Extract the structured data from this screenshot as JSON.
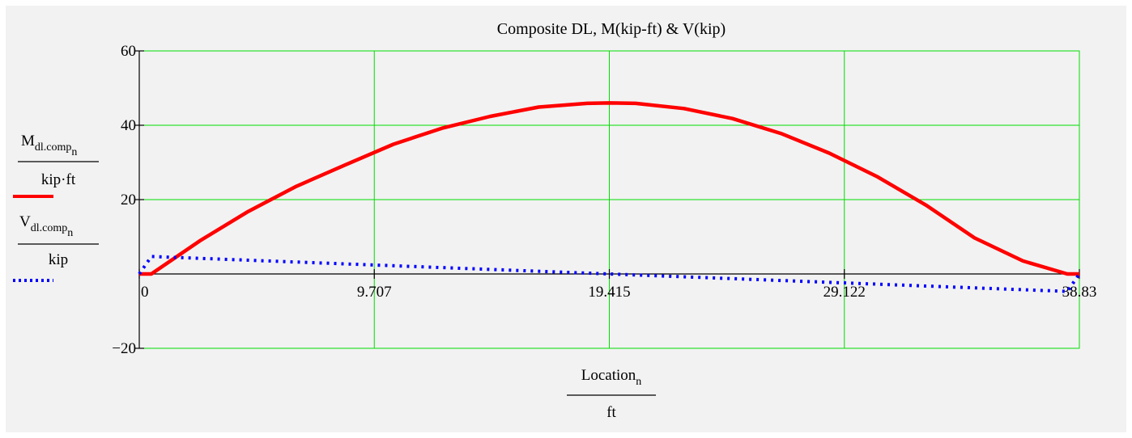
{
  "chart_data": {
    "type": "line",
    "title": "Composite DL, M(kip-ft) & V(kip)",
    "xlabel": {
      "main": "Location",
      "sub": "n",
      "unit": "ft"
    },
    "ylabel_m": {
      "main": "M",
      "sub": "dl.comp",
      "subsub": "n",
      "unit": "kip·ft"
    },
    "ylabel_v": {
      "main": "V",
      "sub": "dl.comp",
      "subsub": "n",
      "unit": "kip"
    },
    "xlim": [
      0,
      38.83
    ],
    "ylim": [
      -20,
      60
    ],
    "x_ticks": [
      0,
      9.707,
      19.415,
      29.122,
      38.83
    ],
    "x_tick_labels": [
      "0",
      "9.707",
      "19.415",
      "29.122",
      "38.83"
    ],
    "y_ticks": [
      -20,
      20,
      40,
      60
    ],
    "y_tick_labels": [
      "−20",
      "20",
      "40",
      "60"
    ],
    "grid": true,
    "grid_color": "#00dd00",
    "series": [
      {
        "color": "#ff0000",
        "style": "solid",
        "x": [
          0,
          0.5,
          0.5,
          2.5,
          4.5,
          6.5,
          8.5,
          10.5,
          12.5,
          14.5,
          16.5,
          18.5,
          19.415,
          20.5,
          22.5,
          24.5,
          26.5,
          28.5,
          30.5,
          32.5,
          34.5,
          36.5,
          38.33,
          38.33,
          38.83
        ],
        "y": [
          0,
          0,
          0,
          8.9,
          16.8,
          23.6,
          29.3,
          34.9,
          39.2,
          42.4,
          44.9,
          45.9,
          46.0,
          45.9,
          44.5,
          41.8,
          37.8,
          32.5,
          26.1,
          18.5,
          9.7,
          3.5,
          0,
          0,
          0
        ]
      },
      {
        "color": "#0000ff",
        "style": "dotted",
        "x": [
          0,
          0.5,
          19.415,
          38.33,
          38.83
        ],
        "y": [
          0,
          4.7,
          0,
          -4.7,
          0
        ]
      }
    ]
  }
}
